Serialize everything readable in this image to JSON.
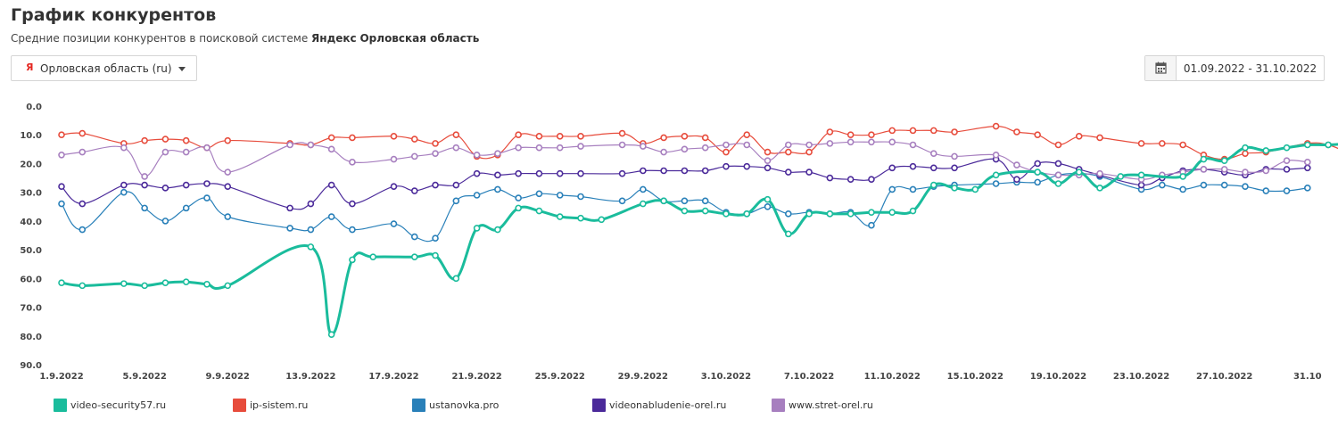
{
  "header": {
    "title": "График конкурентов",
    "subtitle_prefix": "Средние позиции конкурентов в поисковой системе ",
    "subtitle_engine": "Яндекс",
    "subtitle_region": "Орловская область"
  },
  "controls": {
    "region_icon": "Я",
    "region_label": "Орловская область (ru)",
    "date_range": "01.09.2022 - 31.10.2022"
  },
  "colors": {
    "video-security57.ru": "#1abc9c",
    "ip-sistem.ru": "#e74c3c",
    "ustanovka.pro": "#2980b9",
    "videonabludenie-orel.ru": "#4b2a9a",
    "www.stret-orel.ru": "#a77fbf"
  },
  "chart_data": {
    "type": "line",
    "title": "",
    "xlabel": "",
    "ylabel": "",
    "y_reversed": true,
    "ylim": [
      0,
      90
    ],
    "yticks": [
      "0.0",
      "10.0",
      "20.0",
      "30.0",
      "40.0",
      "50.0",
      "60.0",
      "70.0",
      "80.0",
      "90.0"
    ],
    "x_tick_labels": [
      "1.9.2022",
      "5.9.2022",
      "9.9.2022",
      "13.9.2022",
      "17.9.2022",
      "21.9.2022",
      "25.9.2022",
      "29.9.2022",
      "3.10.2022",
      "7.10.2022",
      "11.10.2022",
      "15.10.2022",
      "19.10.2022",
      "23.10.2022",
      "27.10.2022",
      "31.10"
    ],
    "x_start": "2022-09-01",
    "x_end": "2022-10-31",
    "series": [
      {
        "name": "video-security57.ru",
        "points": [
          [
            1,
            61.5
          ],
          [
            2,
            62.5
          ],
          [
            4,
            61.8
          ],
          [
            5,
            62.5
          ],
          [
            6,
            61.5
          ],
          [
            7,
            61.2
          ],
          [
            8,
            62
          ],
          [
            9,
            62.5
          ],
          [
            13,
            49
          ],
          [
            14,
            79.5
          ],
          [
            15,
            53.5
          ],
          [
            16,
            52.5
          ],
          [
            18,
            52.5
          ],
          [
            19,
            52
          ],
          [
            20,
            60
          ],
          [
            21,
            42.5
          ],
          [
            22,
            43
          ],
          [
            23,
            35.5
          ],
          [
            24,
            36.5
          ],
          [
            25,
            38.5
          ],
          [
            26,
            39
          ],
          [
            27,
            39.5
          ],
          [
            29,
            34
          ],
          [
            30,
            33
          ],
          [
            31,
            36.5
          ],
          [
            32,
            36.5
          ],
          [
            33,
            37.5
          ],
          [
            34,
            37.5
          ],
          [
            35,
            32.5
          ],
          [
            36,
            44.5
          ],
          [
            37,
            37.5
          ],
          [
            38,
            37.5
          ],
          [
            39,
            37.5
          ],
          [
            40,
            37
          ],
          [
            41,
            37
          ],
          [
            42,
            36.5
          ],
          [
            43,
            27.5
          ],
          [
            44,
            28.5
          ],
          [
            45,
            29
          ],
          [
            46,
            24
          ],
          [
            48,
            23
          ],
          [
            49,
            27
          ],
          [
            50,
            23
          ],
          [
            51,
            28.5
          ],
          [
            52,
            24.5
          ],
          [
            53,
            24
          ],
          [
            55,
            24.5
          ],
          [
            56,
            18.5
          ],
          [
            57,
            19
          ],
          [
            58,
            14.5
          ],
          [
            59,
            15.5
          ],
          [
            60,
            14.5
          ],
          [
            61,
            13.5
          ],
          [
            62,
            13.5
          ],
          [
            63,
            13
          ]
        ]
      },
      {
        "name": "ip-sistem.ru",
        "points": [
          [
            1,
            10
          ],
          [
            2,
            9.5
          ],
          [
            4,
            13
          ],
          [
            5,
            12
          ],
          [
            6,
            11.5
          ],
          [
            7,
            12
          ],
          [
            8,
            14.5
          ],
          [
            9,
            12
          ],
          [
            12,
            13
          ],
          [
            13,
            13.5
          ],
          [
            14,
            11
          ],
          [
            15,
            11
          ],
          [
            17,
            10.5
          ],
          [
            18,
            11.5
          ],
          [
            19,
            13
          ],
          [
            20,
            10
          ],
          [
            21,
            17.5
          ],
          [
            22,
            17
          ],
          [
            23,
            10
          ],
          [
            24,
            10.5
          ],
          [
            25,
            10.5
          ],
          [
            26,
            10.5
          ],
          [
            28,
            9.5
          ],
          [
            29,
            13
          ],
          [
            30,
            11
          ],
          [
            31,
            10.5
          ],
          [
            32,
            11
          ],
          [
            33,
            16
          ],
          [
            34,
            10
          ],
          [
            35,
            16
          ],
          [
            36,
            16
          ],
          [
            37,
            16
          ],
          [
            38,
            9
          ],
          [
            39,
            10
          ],
          [
            40,
            10
          ],
          [
            41,
            8.5
          ],
          [
            42,
            8.5
          ],
          [
            43,
            8.5
          ],
          [
            44,
            9
          ],
          [
            46,
            7
          ],
          [
            47,
            9
          ],
          [
            48,
            10
          ],
          [
            49,
            13.5
          ],
          [
            50,
            10.5
          ],
          [
            51,
            11
          ],
          [
            53,
            13
          ],
          [
            54,
            13
          ],
          [
            55,
            13.5
          ],
          [
            56,
            17
          ],
          [
            57,
            18.5
          ],
          [
            58,
            16.5
          ],
          [
            59,
            16
          ],
          [
            61,
            13
          ],
          [
            62,
            13.5
          ],
          [
            63,
            16.5
          ]
        ]
      },
      {
        "name": "ustanovka.pro",
        "points": [
          [
            1,
            34
          ],
          [
            2,
            43
          ],
          [
            4,
            30
          ],
          [
            5,
            35.5
          ],
          [
            6,
            40
          ],
          [
            7,
            35.5
          ],
          [
            8,
            32
          ],
          [
            9,
            38.5
          ],
          [
            12,
            42.5
          ],
          [
            13,
            43
          ],
          [
            14,
            38.5
          ],
          [
            15,
            43
          ],
          [
            17,
            41
          ],
          [
            18,
            45.5
          ],
          [
            19,
            46
          ],
          [
            20,
            33
          ],
          [
            21,
            31
          ],
          [
            22,
            29
          ],
          [
            23,
            32
          ],
          [
            24,
            30.5
          ],
          [
            25,
            31
          ],
          [
            26,
            31.5
          ],
          [
            28,
            33
          ],
          [
            29,
            29
          ],
          [
            30,
            33
          ],
          [
            31,
            33
          ],
          [
            32,
            33
          ],
          [
            33,
            37
          ],
          [
            34,
            37.5
          ],
          [
            35,
            35
          ],
          [
            36,
            37.5
          ],
          [
            37,
            37
          ],
          [
            38,
            37.5
          ],
          [
            39,
            37
          ],
          [
            40,
            41.5
          ],
          [
            41,
            29
          ],
          [
            42,
            29
          ],
          [
            43,
            28
          ],
          [
            44,
            27.5
          ],
          [
            46,
            27
          ],
          [
            47,
            26.5
          ],
          [
            48,
            26.5
          ],
          [
            49,
            24
          ],
          [
            50,
            23.5
          ],
          [
            51,
            24.5
          ],
          [
            53,
            29
          ],
          [
            54,
            27.5
          ],
          [
            55,
            29
          ],
          [
            56,
            27.5
          ],
          [
            57,
            27.5
          ],
          [
            58,
            28
          ],
          [
            59,
            29.5
          ],
          [
            60,
            29.5
          ],
          [
            61,
            28.5
          ]
        ]
      },
      {
        "name": "videonabludenie-orel.ru",
        "points": [
          [
            1,
            28
          ],
          [
            2,
            34
          ],
          [
            4,
            27.5
          ],
          [
            5,
            27.5
          ],
          [
            6,
            28.5
          ],
          [
            7,
            27.5
          ],
          [
            8,
            27
          ],
          [
            9,
            28
          ],
          [
            12,
            35.5
          ],
          [
            13,
            34
          ],
          [
            14,
            27.5
          ],
          [
            15,
            34
          ],
          [
            17,
            28
          ],
          [
            18,
            29.5
          ],
          [
            19,
            27.5
          ],
          [
            20,
            27.5
          ],
          [
            21,
            23.5
          ],
          [
            22,
            24
          ],
          [
            23,
            23.5
          ],
          [
            24,
            23.5
          ],
          [
            25,
            23.5
          ],
          [
            26,
            23.5
          ],
          [
            28,
            23.5
          ],
          [
            29,
            22.5
          ],
          [
            30,
            22.5
          ],
          [
            31,
            22.5
          ],
          [
            32,
            22.5
          ],
          [
            33,
            21
          ],
          [
            34,
            21
          ],
          [
            35,
            21.5
          ],
          [
            36,
            23
          ],
          [
            37,
            23
          ],
          [
            38,
            25
          ],
          [
            39,
            25.5
          ],
          [
            40,
            25.5
          ],
          [
            41,
            21.5
          ],
          [
            42,
            21
          ],
          [
            43,
            21.5
          ],
          [
            44,
            21.5
          ],
          [
            46,
            18.5
          ],
          [
            47,
            25.5
          ],
          [
            48,
            20
          ],
          [
            49,
            20
          ],
          [
            50,
            22
          ],
          [
            51,
            24
          ],
          [
            53,
            27.5
          ],
          [
            54,
            25
          ],
          [
            55,
            22.5
          ],
          [
            56,
            22
          ],
          [
            57,
            23
          ],
          [
            58,
            24
          ],
          [
            59,
            22
          ],
          [
            60,
            22
          ],
          [
            61,
            21.5
          ]
        ]
      },
      {
        "name": "www.stret-orel.ru",
        "points": [
          [
            1,
            17
          ],
          [
            2,
            16
          ],
          [
            4,
            14.5
          ],
          [
            5,
            24.5
          ],
          [
            6,
            16
          ],
          [
            7,
            16
          ],
          [
            8,
            14.5
          ],
          [
            9,
            23
          ],
          [
            12,
            13.5
          ],
          [
            13,
            13.5
          ],
          [
            14,
            15
          ],
          [
            15,
            19.5
          ],
          [
            17,
            18.5
          ],
          [
            18,
            17.5
          ],
          [
            19,
            16.5
          ],
          [
            20,
            14.5
          ],
          [
            21,
            17
          ],
          [
            22,
            16.5
          ],
          [
            23,
            14.5
          ],
          [
            24,
            14.5
          ],
          [
            25,
            14.5
          ],
          [
            26,
            14
          ],
          [
            28,
            13.5
          ],
          [
            29,
            14
          ],
          [
            30,
            16
          ],
          [
            31,
            15
          ],
          [
            32,
            14.5
          ],
          [
            33,
            13.5
          ],
          [
            34,
            13.5
          ],
          [
            35,
            19
          ],
          [
            36,
            13.5
          ],
          [
            37,
            13.5
          ],
          [
            38,
            13
          ],
          [
            39,
            12.5
          ],
          [
            40,
            12.5
          ],
          [
            41,
            12.5
          ],
          [
            42,
            13.5
          ],
          [
            43,
            16.5
          ],
          [
            44,
            17.5
          ],
          [
            46,
            17
          ],
          [
            47,
            20.5
          ],
          [
            48,
            23
          ],
          [
            49,
            24
          ],
          [
            50,
            24
          ],
          [
            51,
            23.5
          ],
          [
            53,
            25.5
          ],
          [
            54,
            24
          ],
          [
            55,
            23
          ],
          [
            56,
            22
          ],
          [
            57,
            22
          ],
          [
            58,
            23
          ],
          [
            59,
            22.5
          ],
          [
            60,
            19
          ],
          [
            61,
            19.5
          ]
        ]
      }
    ]
  }
}
